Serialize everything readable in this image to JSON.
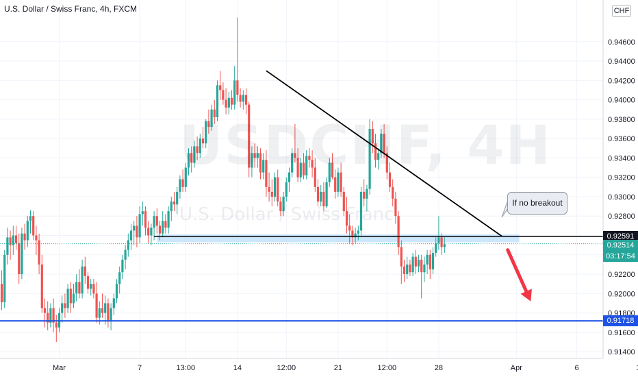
{
  "header": {
    "title": "U.S. Dollar / Swiss Franc, 4h, FXCM"
  },
  "watermark": {
    "symbol": "USDCHF, 4H",
    "description": "U.S. Dollar / Swiss Franc"
  },
  "currency_badge": "CHF",
  "annotation": {
    "text": "If no breakout"
  },
  "price_labels": {
    "level": "0.92591",
    "last_price": "0.92514",
    "countdown": "03:17:54",
    "support": "0.91718"
  },
  "colors": {
    "up": "#26a69a",
    "down": "#ef5350",
    "zone": "#bbdefb",
    "support_line": "#1e53e5",
    "trendline": "#000000",
    "arrow": "#f23645",
    "level_tag": "#131722",
    "last_tag": "#26a69a",
    "grid": "#f0f3fa"
  },
  "chart_data": {
    "type": "candlestick",
    "title": "U.S. Dollar / Swiss Franc, 4h, FXCM",
    "ylim": [
      0.9133,
      0.9503
    ],
    "y_ticks": [
      "0.91400",
      "0.91600",
      "0.91800",
      "0.92000",
      "0.92200",
      "0.92400",
      "0.92600",
      "0.92800",
      "0.93000",
      "0.93200",
      "0.93400",
      "0.93600",
      "0.93800",
      "0.94000",
      "0.94200",
      "0.94400",
      "0.94600"
    ],
    "x_ticks": [
      "Mar",
      "7",
      "13:00",
      "14",
      "12:00",
      "21",
      "12:00",
      "28",
      "Apr",
      "6",
      "11"
    ],
    "x_tick_index": [
      20,
      48,
      64,
      82,
      99,
      117,
      134,
      152,
      179,
      200,
      222
    ],
    "grid": true,
    "candles": [
      {
        "o": 0.921,
        "h": 0.9224,
        "l": 0.9183,
        "c": 0.9191
      },
      {
        "o": 0.9191,
        "h": 0.9245,
        "l": 0.9185,
        "c": 0.924
      },
      {
        "o": 0.924,
        "h": 0.9268,
        "l": 0.923,
        "c": 0.9258
      },
      {
        "o": 0.9258,
        "h": 0.9265,
        "l": 0.9235,
        "c": 0.925
      },
      {
        "o": 0.925,
        "h": 0.927,
        "l": 0.924,
        "c": 0.926
      },
      {
        "o": 0.926,
        "h": 0.927,
        "l": 0.9245,
        "c": 0.9252
      },
      {
        "o": 0.9252,
        "h": 0.9262,
        "l": 0.921,
        "c": 0.922
      },
      {
        "o": 0.922,
        "h": 0.9268,
        "l": 0.9215,
        "c": 0.9262
      },
      {
        "o": 0.9262,
        "h": 0.9272,
        "l": 0.9245,
        "c": 0.9255
      },
      {
        "o": 0.9255,
        "h": 0.928,
        "l": 0.9248,
        "c": 0.9275
      },
      {
        "o": 0.9275,
        "h": 0.9286,
        "l": 0.9262,
        "c": 0.928
      },
      {
        "o": 0.928,
        "h": 0.9285,
        "l": 0.9255,
        "c": 0.926
      },
      {
        "o": 0.926,
        "h": 0.927,
        "l": 0.924,
        "c": 0.9255
      },
      {
        "o": 0.9255,
        "h": 0.9262,
        "l": 0.922,
        "c": 0.923
      },
      {
        "o": 0.923,
        "h": 0.924,
        "l": 0.918,
        "c": 0.9185
      },
      {
        "o": 0.9185,
        "h": 0.9195,
        "l": 0.9165,
        "c": 0.918
      },
      {
        "o": 0.918,
        "h": 0.9192,
        "l": 0.9162,
        "c": 0.917
      },
      {
        "o": 0.917,
        "h": 0.919,
        "l": 0.9165,
        "c": 0.9185
      },
      {
        "o": 0.9185,
        "h": 0.9195,
        "l": 0.916,
        "c": 0.917
      },
      {
        "o": 0.917,
        "h": 0.9178,
        "l": 0.915,
        "c": 0.9165
      },
      {
        "o": 0.9165,
        "h": 0.9185,
        "l": 0.916,
        "c": 0.918
      },
      {
        "o": 0.918,
        "h": 0.9198,
        "l": 0.917,
        "c": 0.919
      },
      {
        "o": 0.919,
        "h": 0.92,
        "l": 0.9175,
        "c": 0.9185
      },
      {
        "o": 0.9185,
        "h": 0.921,
        "l": 0.918,
        "c": 0.9205
      },
      {
        "o": 0.9205,
        "h": 0.9212,
        "l": 0.918,
        "c": 0.919
      },
      {
        "o": 0.919,
        "h": 0.921,
        "l": 0.9185,
        "c": 0.92
      },
      {
        "o": 0.92,
        "h": 0.922,
        "l": 0.9192,
        "c": 0.9212
      },
      {
        "o": 0.9212,
        "h": 0.9225,
        "l": 0.9195,
        "c": 0.92
      },
      {
        "o": 0.92,
        "h": 0.9235,
        "l": 0.9195,
        "c": 0.9228
      },
      {
        "o": 0.9228,
        "h": 0.9238,
        "l": 0.921,
        "c": 0.9218
      },
      {
        "o": 0.9218,
        "h": 0.9222,
        "l": 0.92,
        "c": 0.9205
      },
      {
        "o": 0.9205,
        "h": 0.9215,
        "l": 0.9198,
        "c": 0.921
      },
      {
        "o": 0.921,
        "h": 0.9215,
        "l": 0.9195,
        "c": 0.92
      },
      {
        "o": 0.92,
        "h": 0.9212,
        "l": 0.917,
        "c": 0.9175
      },
      {
        "o": 0.9175,
        "h": 0.9192,
        "l": 0.9168,
        "c": 0.9185
      },
      {
        "o": 0.9185,
        "h": 0.92,
        "l": 0.9175,
        "c": 0.918
      },
      {
        "o": 0.918,
        "h": 0.9198,
        "l": 0.9168,
        "c": 0.919
      },
      {
        "o": 0.919,
        "h": 0.9195,
        "l": 0.9165,
        "c": 0.9172
      },
      {
        "o": 0.9172,
        "h": 0.919,
        "l": 0.9162,
        "c": 0.9185
      },
      {
        "o": 0.9185,
        "h": 0.92,
        "l": 0.9178,
        "c": 0.9195
      },
      {
        "o": 0.9195,
        "h": 0.9215,
        "l": 0.919,
        "c": 0.921
      },
      {
        "o": 0.921,
        "h": 0.9228,
        "l": 0.92,
        "c": 0.9222
      },
      {
        "o": 0.9222,
        "h": 0.924,
        "l": 0.9215,
        "c": 0.9235
      },
      {
        "o": 0.9235,
        "h": 0.925,
        "l": 0.9225,
        "c": 0.9245
      },
      {
        "o": 0.9245,
        "h": 0.9262,
        "l": 0.9238,
        "c": 0.9255
      },
      {
        "o": 0.9255,
        "h": 0.9272,
        "l": 0.9245,
        "c": 0.9265
      },
      {
        "o": 0.9265,
        "h": 0.9275,
        "l": 0.925,
        "c": 0.927
      },
      {
        "o": 0.927,
        "h": 0.928,
        "l": 0.9248,
        "c": 0.9258
      },
      {
        "o": 0.9258,
        "h": 0.929,
        "l": 0.9252,
        "c": 0.9282
      },
      {
        "o": 0.9282,
        "h": 0.9295,
        "l": 0.927,
        "c": 0.9285
      },
      {
        "o": 0.9285,
        "h": 0.929,
        "l": 0.926,
        "c": 0.9268
      },
      {
        "o": 0.9268,
        "h": 0.9275,
        "l": 0.9252,
        "c": 0.926
      },
      {
        "o": 0.926,
        "h": 0.9272,
        "l": 0.925,
        "c": 0.9268
      },
      {
        "o": 0.9268,
        "h": 0.9285,
        "l": 0.9255,
        "c": 0.928
      },
      {
        "o": 0.928,
        "h": 0.9288,
        "l": 0.9262,
        "c": 0.927
      },
      {
        "o": 0.927,
        "h": 0.9275,
        "l": 0.9255,
        "c": 0.9262
      },
      {
        "o": 0.9262,
        "h": 0.9285,
        "l": 0.9258,
        "c": 0.9275
      },
      {
        "o": 0.9275,
        "h": 0.9282,
        "l": 0.9262,
        "c": 0.9268
      },
      {
        "o": 0.9268,
        "h": 0.929,
        "l": 0.9262,
        "c": 0.9285
      },
      {
        "o": 0.9285,
        "h": 0.93,
        "l": 0.9275,
        "c": 0.9295
      },
      {
        "o": 0.9295,
        "h": 0.9305,
        "l": 0.9285,
        "c": 0.9292
      },
      {
        "o": 0.9292,
        "h": 0.931,
        "l": 0.9282,
        "c": 0.9305
      },
      {
        "o": 0.9305,
        "h": 0.9322,
        "l": 0.9298,
        "c": 0.9318
      },
      {
        "o": 0.9318,
        "h": 0.9328,
        "l": 0.9305,
        "c": 0.931
      },
      {
        "o": 0.931,
        "h": 0.9335,
        "l": 0.9305,
        "c": 0.933
      },
      {
        "o": 0.933,
        "h": 0.935,
        "l": 0.9322,
        "c": 0.9345
      },
      {
        "o": 0.9345,
        "h": 0.9352,
        "l": 0.9325,
        "c": 0.9335
      },
      {
        "o": 0.9335,
        "h": 0.9358,
        "l": 0.933,
        "c": 0.9352
      },
      {
        "o": 0.9352,
        "h": 0.9362,
        "l": 0.9338,
        "c": 0.9345
      },
      {
        "o": 0.9345,
        "h": 0.9365,
        "l": 0.934,
        "c": 0.936
      },
      {
        "o": 0.936,
        "h": 0.9372,
        "l": 0.935,
        "c": 0.9355
      },
      {
        "o": 0.9355,
        "h": 0.938,
        "l": 0.935,
        "c": 0.9378
      },
      {
        "o": 0.9378,
        "h": 0.939,
        "l": 0.9365,
        "c": 0.9372
      },
      {
        "o": 0.9372,
        "h": 0.9395,
        "l": 0.9368,
        "c": 0.939
      },
      {
        "o": 0.939,
        "h": 0.94,
        "l": 0.9375,
        "c": 0.9382
      },
      {
        "o": 0.9382,
        "h": 0.942,
        "l": 0.9378,
        "c": 0.9415
      },
      {
        "o": 0.9415,
        "h": 0.943,
        "l": 0.94,
        "c": 0.941
      },
      {
        "o": 0.941,
        "h": 0.9418,
        "l": 0.9395,
        "c": 0.94
      },
      {
        "o": 0.94,
        "h": 0.9412,
        "l": 0.9385,
        "c": 0.9392
      },
      {
        "o": 0.9392,
        "h": 0.9408,
        "l": 0.9385,
        "c": 0.9402
      },
      {
        "o": 0.9402,
        "h": 0.941,
        "l": 0.939,
        "c": 0.9395
      },
      {
        "o": 0.9395,
        "h": 0.9435,
        "l": 0.939,
        "c": 0.942
      },
      {
        "o": 0.942,
        "h": 0.9485,
        "l": 0.9398,
        "c": 0.9405
      },
      {
        "o": 0.9405,
        "h": 0.9412,
        "l": 0.9392,
        "c": 0.9398
      },
      {
        "o": 0.9398,
        "h": 0.941,
        "l": 0.939,
        "c": 0.9405
      },
      {
        "o": 0.9405,
        "h": 0.9412,
        "l": 0.9385,
        "c": 0.9395
      },
      {
        "o": 0.9395,
        "h": 0.9398,
        "l": 0.932,
        "c": 0.933
      },
      {
        "o": 0.933,
        "h": 0.9352,
        "l": 0.932,
        "c": 0.9345
      },
      {
        "o": 0.9345,
        "h": 0.9355,
        "l": 0.933,
        "c": 0.934
      },
      {
        "o": 0.934,
        "h": 0.9352,
        "l": 0.933,
        "c": 0.9345
      },
      {
        "o": 0.9345,
        "h": 0.935,
        "l": 0.9318,
        "c": 0.9325
      },
      {
        "o": 0.9325,
        "h": 0.9345,
        "l": 0.9318,
        "c": 0.9338
      },
      {
        "o": 0.9338,
        "h": 0.9348,
        "l": 0.93,
        "c": 0.931
      },
      {
        "o": 0.931,
        "h": 0.9325,
        "l": 0.9295,
        "c": 0.9305
      },
      {
        "o": 0.9305,
        "h": 0.9318,
        "l": 0.929,
        "c": 0.93
      },
      {
        "o": 0.93,
        "h": 0.9325,
        "l": 0.9295,
        "c": 0.932
      },
      {
        "o": 0.932,
        "h": 0.9328,
        "l": 0.929,
        "c": 0.9295
      },
      {
        "o": 0.9295,
        "h": 0.93,
        "l": 0.928,
        "c": 0.9285
      },
      {
        "o": 0.9285,
        "h": 0.9305,
        "l": 0.928,
        "c": 0.93
      },
      {
        "o": 0.93,
        "h": 0.932,
        "l": 0.9295,
        "c": 0.9315
      },
      {
        "o": 0.9315,
        "h": 0.933,
        "l": 0.9305,
        "c": 0.9325
      },
      {
        "o": 0.9325,
        "h": 0.935,
        "l": 0.932,
        "c": 0.9345
      },
      {
        "o": 0.9345,
        "h": 0.9375,
        "l": 0.9335,
        "c": 0.934
      },
      {
        "o": 0.934,
        "h": 0.935,
        "l": 0.9315,
        "c": 0.932
      },
      {
        "o": 0.932,
        "h": 0.934,
        "l": 0.9315,
        "c": 0.9335
      },
      {
        "o": 0.9335,
        "h": 0.9345,
        "l": 0.9318,
        "c": 0.9322
      },
      {
        "o": 0.9322,
        "h": 0.9348,
        "l": 0.9318,
        "c": 0.9342
      },
      {
        "o": 0.9342,
        "h": 0.935,
        "l": 0.933,
        "c": 0.9338
      },
      {
        "o": 0.9338,
        "h": 0.9348,
        "l": 0.932,
        "c": 0.933
      },
      {
        "o": 0.933,
        "h": 0.934,
        "l": 0.9305,
        "c": 0.931
      },
      {
        "o": 0.931,
        "h": 0.9318,
        "l": 0.929,
        "c": 0.9295
      },
      {
        "o": 0.9295,
        "h": 0.9312,
        "l": 0.929,
        "c": 0.9305
      },
      {
        "o": 0.9305,
        "h": 0.9315,
        "l": 0.9285,
        "c": 0.929
      },
      {
        "o": 0.929,
        "h": 0.932,
        "l": 0.9288,
        "c": 0.9315
      },
      {
        "o": 0.9315,
        "h": 0.934,
        "l": 0.931,
        "c": 0.9335
      },
      {
        "o": 0.9335,
        "h": 0.9345,
        "l": 0.9318,
        "c": 0.932
      },
      {
        "o": 0.932,
        "h": 0.9328,
        "l": 0.9298,
        "c": 0.9305
      },
      {
        "o": 0.9305,
        "h": 0.933,
        "l": 0.93,
        "c": 0.9325
      },
      {
        "o": 0.9325,
        "h": 0.9335,
        "l": 0.93,
        "c": 0.9305
      },
      {
        "o": 0.9305,
        "h": 0.931,
        "l": 0.928,
        "c": 0.9285
      },
      {
        "o": 0.9285,
        "h": 0.93,
        "l": 0.9262,
        "c": 0.927
      },
      {
        "o": 0.927,
        "h": 0.9282,
        "l": 0.9252,
        "c": 0.9265
      },
      {
        "o": 0.9265,
        "h": 0.927,
        "l": 0.925,
        "c": 0.9258
      },
      {
        "o": 0.9258,
        "h": 0.9268,
        "l": 0.9252,
        "c": 0.9262
      },
      {
        "o": 0.9262,
        "h": 0.927,
        "l": 0.9255,
        "c": 0.9265
      },
      {
        "o": 0.9265,
        "h": 0.931,
        "l": 0.926,
        "c": 0.9305
      },
      {
        "o": 0.9305,
        "h": 0.9318,
        "l": 0.929,
        "c": 0.9298
      },
      {
        "o": 0.9298,
        "h": 0.9312,
        "l": 0.9285,
        "c": 0.9308
      },
      {
        "o": 0.9308,
        "h": 0.938,
        "l": 0.9302,
        "c": 0.937
      },
      {
        "o": 0.937,
        "h": 0.9378,
        "l": 0.9345,
        "c": 0.9355
      },
      {
        "o": 0.9355,
        "h": 0.9365,
        "l": 0.933,
        "c": 0.9338
      },
      {
        "o": 0.9338,
        "h": 0.935,
        "l": 0.9328,
        "c": 0.9345
      },
      {
        "o": 0.9345,
        "h": 0.937,
        "l": 0.934,
        "c": 0.9365
      },
      {
        "o": 0.9365,
        "h": 0.9375,
        "l": 0.934,
        "c": 0.9345
      },
      {
        "o": 0.9345,
        "h": 0.9352,
        "l": 0.9318,
        "c": 0.9325
      },
      {
        "o": 0.9325,
        "h": 0.9335,
        "l": 0.9305,
        "c": 0.931
      },
      {
        "o": 0.931,
        "h": 0.9318,
        "l": 0.929,
        "c": 0.9298
      },
      {
        "o": 0.9298,
        "h": 0.9305,
        "l": 0.9272,
        "c": 0.928
      },
      {
        "o": 0.928,
        "h": 0.9285,
        "l": 0.924,
        "c": 0.9248
      },
      {
        "o": 0.9248,
        "h": 0.9255,
        "l": 0.921,
        "c": 0.9228
      },
      {
        "o": 0.9228,
        "h": 0.9235,
        "l": 0.9212,
        "c": 0.922
      },
      {
        "o": 0.922,
        "h": 0.9238,
        "l": 0.9215,
        "c": 0.923
      },
      {
        "o": 0.923,
        "h": 0.9235,
        "l": 0.9218,
        "c": 0.9222
      },
      {
        "o": 0.9222,
        "h": 0.9242,
        "l": 0.9218,
        "c": 0.9238
      },
      {
        "o": 0.9238,
        "h": 0.9245,
        "l": 0.922,
        "c": 0.9228
      },
      {
        "o": 0.9228,
        "h": 0.924,
        "l": 0.9222,
        "c": 0.9235
      },
      {
        "o": 0.9235,
        "h": 0.924,
        "l": 0.9195,
        "c": 0.9222
      },
      {
        "o": 0.9222,
        "h": 0.9238,
        "l": 0.9212,
        "c": 0.923
      },
      {
        "o": 0.923,
        "h": 0.9245,
        "l": 0.922,
        "c": 0.924
      },
      {
        "o": 0.924,
        "h": 0.9245,
        "l": 0.9215,
        "c": 0.9225
      },
      {
        "o": 0.9225,
        "h": 0.9248,
        "l": 0.922,
        "c": 0.9242
      },
      {
        "o": 0.9242,
        "h": 0.9258,
        "l": 0.9238,
        "c": 0.9252
      },
      {
        "o": 0.9252,
        "h": 0.928,
        "l": 0.9245,
        "c": 0.9258
      },
      {
        "o": 0.9258,
        "h": 0.9262,
        "l": 0.924,
        "c": 0.9248
      },
      {
        "o": 0.9248,
        "h": 0.9258,
        "l": 0.9242,
        "c": 0.9251
      }
    ],
    "candle_x": {
      "first": 2.5,
      "step": 4.2
    },
    "levels": [
      {
        "name": "resistance-zone",
        "type": "zone",
        "from": 0.9253,
        "to": 0.9261
      },
      {
        "name": "level-line",
        "type": "horizontal",
        "value": 0.92591
      },
      {
        "name": "support-line",
        "type": "horizontal",
        "value": 0.91718
      },
      {
        "name": "last-price-line",
        "type": "dotted",
        "value": 0.92514
      }
    ],
    "trendline": {
      "from": {
        "index": 92,
        "price": 0.943
      },
      "to": {
        "index": 174,
        "price": 0.92591
      }
    },
    "projection_arrow": {
      "from": {
        "index": 176,
        "price": 0.9245
      },
      "to": {
        "index": 184,
        "price": 0.9192
      }
    }
  }
}
